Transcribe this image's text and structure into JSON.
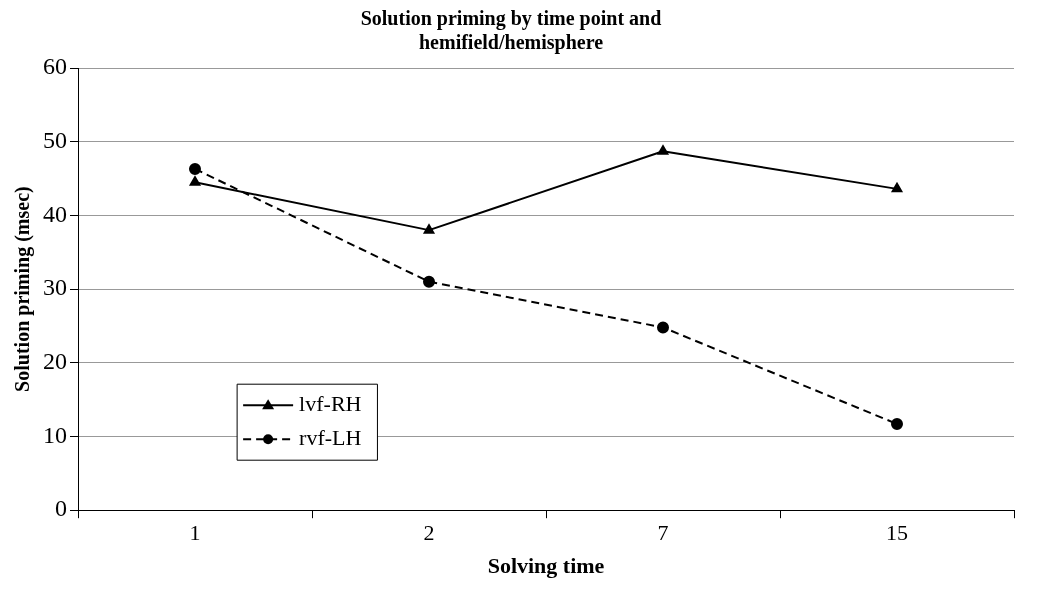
{
  "chart_data": {
    "type": "line",
    "title": "Solution priming by time point and hemifield/hemisphere",
    "xlabel": "Solving time",
    "ylabel": "Solution priming (msec)",
    "categories": [
      "1",
      "2",
      "7",
      "15"
    ],
    "series": [
      {
        "name": "lvf-RH",
        "color": "#000000",
        "values": [
          44.5,
          38,
          48.7,
          43.6
        ],
        "marker": "triangle",
        "line_style": "solid"
      },
      {
        "name": "rvf-LH",
        "color": "#000000",
        "values": [
          46.3,
          31,
          24.8,
          11.7
        ],
        "marker": "circle",
        "line_style": "dashed"
      }
    ],
    "ylim": [
      0,
      60
    ],
    "yticks": [
      0,
      10,
      20,
      30,
      40,
      50,
      60
    ],
    "grid": "y",
    "legend": "bottom left"
  }
}
